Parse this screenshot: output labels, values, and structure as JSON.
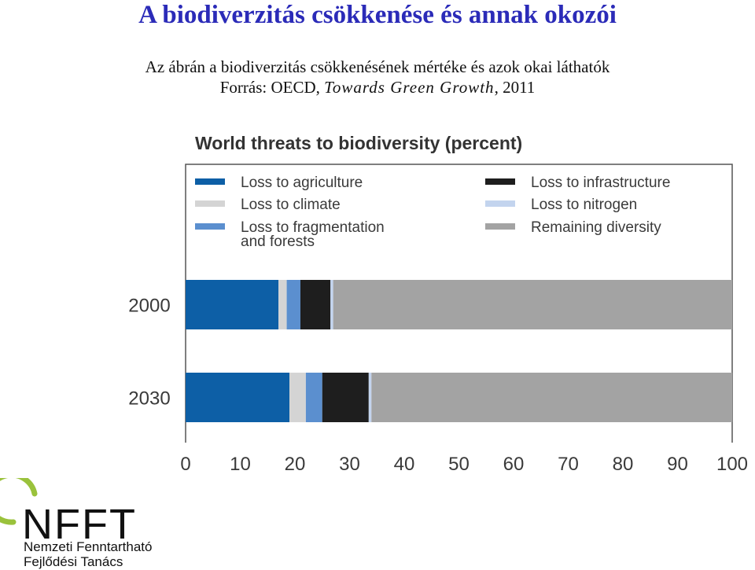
{
  "slide": {
    "title": "A biodiverzitás csökkenése és annak okozói",
    "subtitle": "Az ábrán a biodiverzitás csökkenésének mértéke és azok okai láthatók",
    "source_prefix": "Forrás: OECD,",
    "source_book": "Towards Green Growth",
    "source_suffix": ", 2011"
  },
  "logo": {
    "mark": "NFFT",
    "line1": "Nemzeti Fenntartható",
    "line2": "Fejlődési Tanács",
    "colors": {
      "ring": "#9ac23c",
      "text": "#111111"
    }
  },
  "chart_data": {
    "type": "bar",
    "orientation": "horizontal",
    "stacked": true,
    "title": "World threats to biodiversity (percent)",
    "categories": [
      "2000",
      "2030"
    ],
    "series": [
      {
        "name": "Loss to agriculture",
        "color": "#0d5fa6",
        "values": [
          17,
          19
        ]
      },
      {
        "name": "Loss to climate",
        "color": "#d4d4d4",
        "values": [
          1.5,
          3
        ]
      },
      {
        "name": "Loss to fragmentation and forests",
        "color": "#5b8fcf",
        "values": [
          2.5,
          3
        ]
      },
      {
        "name": "Loss to infrastructure",
        "color": "#1e1e1e",
        "values": [
          5.5,
          8.5
        ]
      },
      {
        "name": "Loss to nitrogen",
        "color": "#c3d4ee",
        "values": [
          0.5,
          0.5
        ]
      },
      {
        "name": "Remaining diversity",
        "color": "#a3a3a3",
        "values": [
          73,
          66
        ]
      }
    ],
    "legend_display": [
      [
        "Loss to agriculture"
      ],
      [
        "Loss to climate"
      ],
      [
        "Loss to fragmentation",
        "and forests"
      ],
      [
        "Loss to infrastructure"
      ],
      [
        "Loss to nitrogen"
      ],
      [
        "Remaining diversity"
      ]
    ],
    "xlim": [
      0,
      100
    ],
    "xticks": [
      "0",
      "10",
      "20",
      "30",
      "40",
      "50",
      "60",
      "70",
      "80",
      "90",
      "100"
    ],
    "legend_position": "top",
    "grid": false
  }
}
